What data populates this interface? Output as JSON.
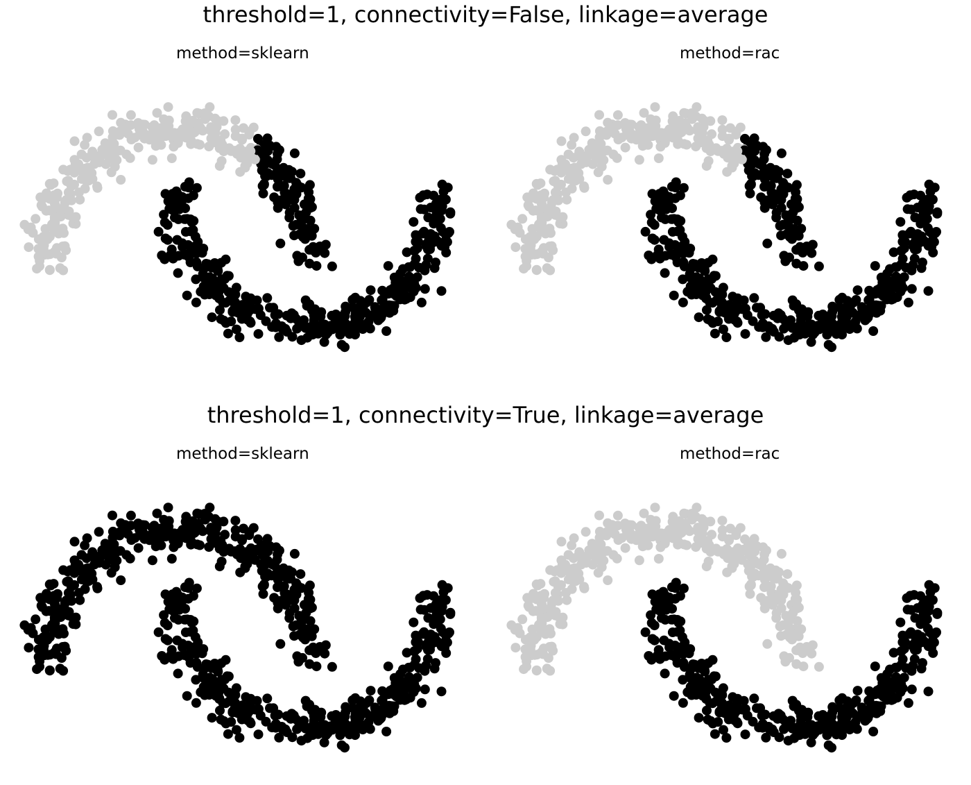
{
  "rows": [
    {
      "title": "threshold=1, connectivity=False, linkage=average"
    },
    {
      "title": "threshold=1, connectivity=True, linkage=average"
    }
  ],
  "colors": {
    "cluster_a": "#000000",
    "cluster_b": "#cccccc"
  },
  "chart_data": [
    {
      "type": "scatter",
      "title": "method=sklearn",
      "dataset": "two interleaving half-moons",
      "n_points_per_moon": 400,
      "noise": 0.08,
      "xlim": [
        -1.25,
        2.25
      ],
      "ylim": [
        -0.7,
        1.25
      ],
      "axes_visible": false,
      "grid": false,
      "clusters": [
        {
          "color": "#000000",
          "region": "lower moon + upper moon with x > 0.6"
        },
        {
          "color": "#cccccc",
          "region": "upper moon with x <= 0.6"
        }
      ],
      "split_x": 0.6
    },
    {
      "type": "scatter",
      "title": "method=rac",
      "dataset": "two interleaving half-moons",
      "n_points_per_moon": 400,
      "noise": 0.08,
      "xlim": [
        -1.25,
        2.25
      ],
      "ylim": [
        -0.7,
        1.25
      ],
      "axes_visible": false,
      "grid": false,
      "clusters": [
        {
          "color": "#000000",
          "region": "lower moon + upper moon with x > 0.6"
        },
        {
          "color": "#cccccc",
          "region": "upper moon with x <= 0.6"
        }
      ],
      "split_x": 0.6
    },
    {
      "type": "scatter",
      "title": "method=sklearn",
      "dataset": "two interleaving half-moons",
      "n_points_per_moon": 400,
      "noise": 0.08,
      "xlim": [
        -1.25,
        2.25
      ],
      "ylim": [
        -0.7,
        1.25
      ],
      "axes_visible": false,
      "grid": false,
      "clusters": [
        {
          "color": "#000000",
          "region": "all points"
        }
      ],
      "split_x": null
    },
    {
      "type": "scatter",
      "title": "method=rac",
      "dataset": "two interleaving half-moons",
      "n_points_per_moon": 400,
      "noise": 0.08,
      "xlim": [
        -1.25,
        2.25
      ],
      "ylim": [
        -0.7,
        1.25
      ],
      "axes_visible": false,
      "grid": false,
      "clusters": [
        {
          "color": "#000000",
          "region": "lower moon"
        },
        {
          "color": "#cccccc",
          "region": "upper moon"
        }
      ],
      "split_x": "upper-moon"
    }
  ]
}
